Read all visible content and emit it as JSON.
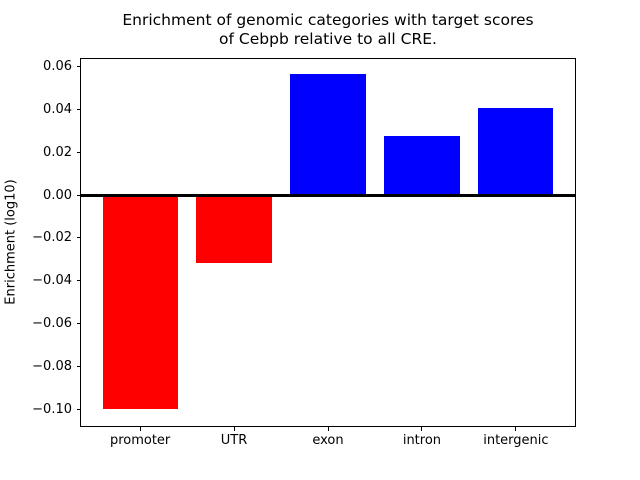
{
  "figure": {
    "background": "#ffffff",
    "title_line1": "Enrichment of genomic categories with target scores",
    "title_line2": "of Cebpb relative to all CRE."
  },
  "chart_data": {
    "type": "bar",
    "title": "Enrichment of genomic categories with target scores of Cebpb relative to all CRE.",
    "xlabel": "",
    "ylabel": "Enrichment (log10)",
    "categories": [
      "promoter",
      "UTR",
      "exon",
      "intron",
      "intergenic"
    ],
    "values": [
      -0.0999,
      -0.0316,
      0.0563,
      0.0277,
      0.0407
    ],
    "bar_colors": [
      "#ff0000",
      "#ff0000",
      "#0000ff",
      "#0000ff",
      "#0000ff"
    ],
    "negative_color": "#ff0000",
    "positive_color": "#0000ff",
    "bar_width": 0.8,
    "xlim": [
      -0.64,
      4.64
    ],
    "ylim": [
      -0.1083,
      0.0642
    ],
    "yticks": [
      {
        "value": 0.06,
        "label": "0.06"
      },
      {
        "value": 0.04,
        "label": "0.04"
      },
      {
        "value": 0.02,
        "label": "0.02"
      },
      {
        "value": 0.0,
        "label": "0.00"
      },
      {
        "value": -0.02,
        "label": "−0.02"
      },
      {
        "value": -0.04,
        "label": "−0.04"
      },
      {
        "value": -0.06,
        "label": "−0.06"
      },
      {
        "value": -0.08,
        "label": "−0.08"
      },
      {
        "value": -0.1,
        "label": "−0.10"
      }
    ],
    "zero_line": {
      "value": 0.0,
      "color": "#000000"
    },
    "grid": false,
    "legend": null
  }
}
